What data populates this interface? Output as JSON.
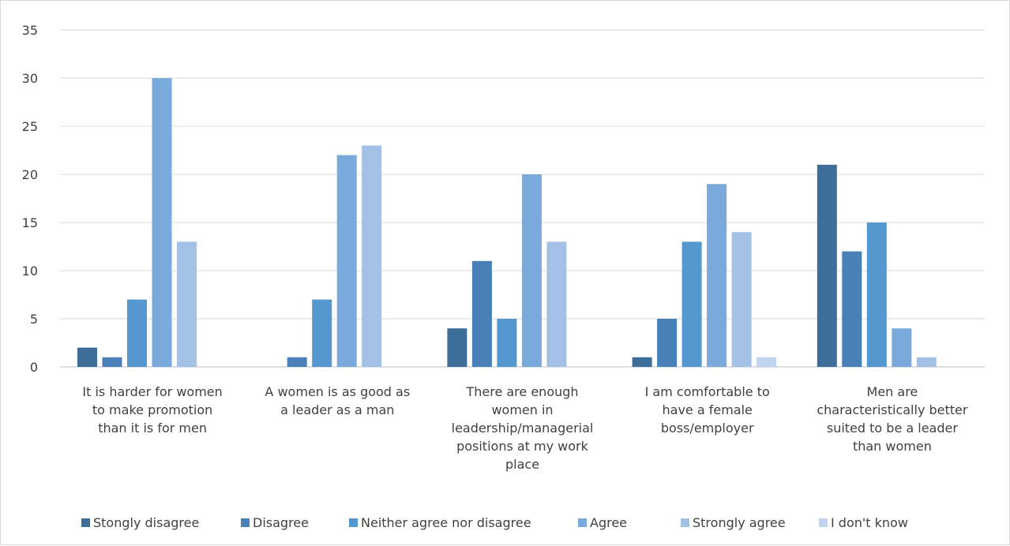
{
  "chart_data": {
    "type": "bar",
    "title": "",
    "xlabel": "",
    "ylabel": "",
    "ylim": [
      0,
      35
    ],
    "yticks": [
      0,
      5,
      10,
      15,
      20,
      25,
      30,
      35
    ],
    "grid": true,
    "legend_position": "bottom",
    "categories": [
      [
        "It is harder for women",
        "to make promotion",
        "than it is for men"
      ],
      [
        "A women is as good as",
        "a leader as a man"
      ],
      [
        "There are enough",
        "women in",
        "leadership/managerial",
        "positions at my work",
        "place"
      ],
      [
        "I am comfortable to",
        "have a female",
        "boss/employer"
      ],
      [
        "Men are",
        "characteristically better",
        "suited to be a leader",
        "than women"
      ]
    ],
    "series": [
      {
        "name": "Stongly disagree",
        "color": "#3d6d99",
        "values": [
          2,
          0,
          4,
          1,
          21
        ]
      },
      {
        "name": "Disagree",
        "color": "#4a80b8",
        "values": [
          1,
          1,
          11,
          5,
          12
        ]
      },
      {
        "name": "Neither agree nor disagree",
        "color": "#5597cf",
        "values": [
          7,
          7,
          5,
          13,
          15
        ]
      },
      {
        "name": "Agree",
        "color": "#7aaadb",
        "values": [
          30,
          22,
          20,
          19,
          4
        ]
      },
      {
        "name": "Strongly agree",
        "color": "#a2c1e4",
        "values": [
          13,
          23,
          13,
          14,
          1
        ]
      },
      {
        "name": "I don't know",
        "color": "#c0d4ee",
        "values": [
          0,
          0,
          0,
          1,
          0
        ]
      }
    ]
  }
}
